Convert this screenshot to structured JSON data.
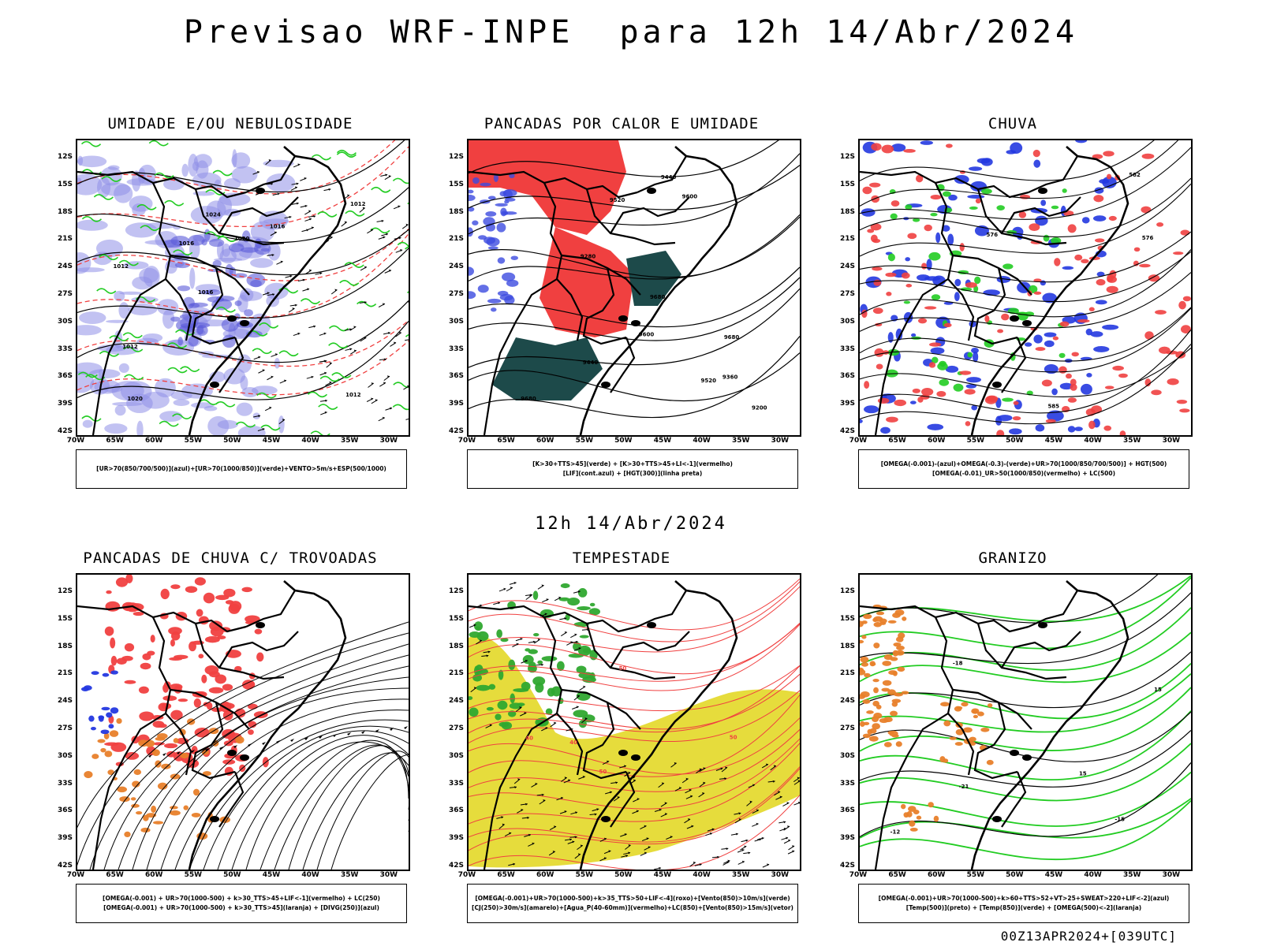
{
  "header": {
    "title": "Previsao WRF-INPE  para 12h 14/Abr/2024",
    "subtitle": "12h 14/Abr/2024",
    "footer": "00Z13APR2024+[039UTC]"
  },
  "axes": {
    "lat_labels": [
      "12S",
      "15S",
      "18S",
      "21S",
      "24S",
      "27S",
      "30S",
      "33S",
      "36S",
      "39S",
      "42S"
    ],
    "lon_labels": [
      "70W",
      "65W",
      "60W",
      "55W",
      "50W",
      "45W",
      "40W",
      "35W",
      "30W"
    ]
  },
  "colors": {
    "blue_shade": "#8f8fe8",
    "green_contour": "#22cc22",
    "red_shade": "#f04040",
    "dark_teal": "#1d4a4a",
    "orange": "#e8802a",
    "yellow": "#e6dc3c",
    "contour_black": "#000000",
    "contour_red": "#f04040"
  },
  "panels": [
    {
      "id": "p1",
      "title": "UMIDADE E/OU NEBULOSIDADE",
      "legend": [
        "[UR>70(850/700/500)](azul)+[UR>70(1000/850)](verde)+VENTO>5m/s+ESP(500/1000)"
      ],
      "contour_labels": [
        "1012",
        "1012",
        "1012",
        "1016",
        "1016",
        "1020",
        "1024",
        "1020",
        "1012",
        "1016"
      ]
    },
    {
      "id": "p2",
      "title": "PANCADAS POR CALOR E UMIDADE",
      "legend": [
        "[K>30+TTS>45](verde) + [K>30+TTS>45+LI<-1](vermelho)",
        "[LIF](cont.azul) + [HGT(300)](linha preta)"
      ],
      "contour_labels": [
        "9680",
        "9680",
        "9680",
        "9600",
        "9520",
        "9440",
        "9360",
        "9600",
        "9520",
        "9440",
        "9200",
        "9280"
      ]
    },
    {
      "id": "p3",
      "title": "CHUVA",
      "legend": [
        "[OMEGA(-0.001)-(azul)+OMEGA(-0.3)-(verde)+UR>70(1000/850/700/500)] + HGT(500)",
        "[OMEGA(-0.01)_UR>50(1000/850)(vermelho) + LC(500)"
      ],
      "contour_labels": [
        "585",
        "576",
        "576",
        "582"
      ]
    },
    {
      "id": "p4",
      "title": "PANCADAS DE CHUVA C/ TROVOADAS",
      "legend": [
        "[OMEGA(-0.001) + UR>70(1000-500) + k>30_TTS>45+LIF<-1](vermelho) + LC(250)",
        "[OMEGA(-0.001) + UR>70(1000-500) + k>30_TTS>45](laranja) + [DIVG(250)](azul)"
      ],
      "contour_labels": []
    },
    {
      "id": "p5",
      "title": "TEMPESTADE",
      "legend": [
        "[OMEGA(-0.001)+UR>70(1000-500)+k>35_TTS>50+LIF<-4](roxo)+[Vento(850)>10m/s](verde)",
        "[CJ(250)>30m/s](amarelo)+[Agua_P(40-60mm)](vermelho)+LC(850)+[Vento(850)>15m/s](vetor)"
      ],
      "contour_labels": [
        "50",
        "40",
        "50",
        "50",
        "40"
      ]
    },
    {
      "id": "p6",
      "title": "GRANIZO",
      "legend": [
        "[OMEGA(-0.001)+UR>70(1000-500)+k>60+TTS>52+VT>25+SWEAT>220+LIF<-2](azul)",
        "[Temp(500)](preto) + [Temp(850)](verde) + [OMEGA(500)<-2](laranja)"
      ],
      "contour_labels": [
        "-15",
        "-12",
        "-18",
        "-21",
        "15",
        "15"
      ]
    }
  ]
}
